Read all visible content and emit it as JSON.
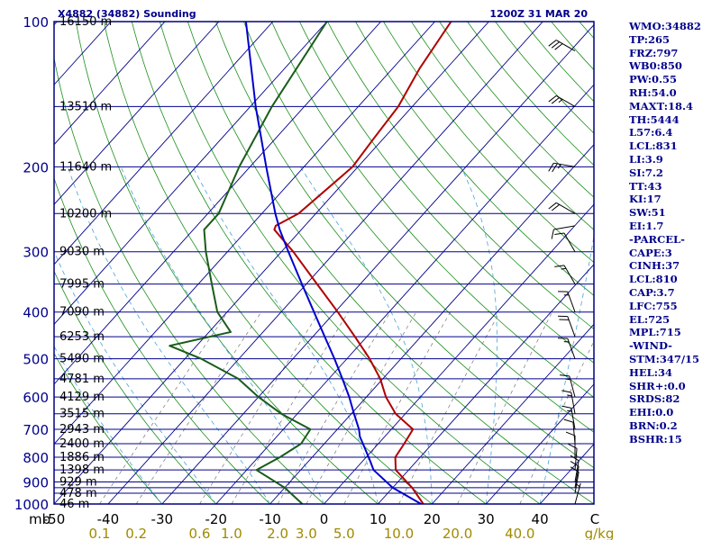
{
  "colors": {
    "background": "#ffffff",
    "frame": "#000080",
    "isobar": "#00008b",
    "isotherm": "#00008b",
    "dry_adiabat": "#1a8f1a",
    "moist_adiabat": "#4aa3d8",
    "mixing_ratio": "#777777",
    "temperature": "#b00000",
    "dewpoint": "#1a5c1a",
    "parcel": "#0000cd",
    "wind_barb": "#000000",
    "label_text": "#00008b",
    "mixing_label": "#a08a00",
    "axis_text": "#000000"
  },
  "header": {
    "station": "X4882 (34882) Sounding",
    "time": "1200Z 31 MAR 20"
  },
  "stats": [
    "WMO:34882",
    "TP:265",
    "FRZ:797",
    "WB0:850",
    "PW:0.55",
    "RH:54.0",
    "MAXT:18.4",
    "TH:5444",
    "L57:6.4",
    "LCL:831",
    "LI:3.9",
    "SI:7.2",
    "TT:43",
    "KI:17",
    "SW:51",
    "EI:1.7",
    "-PARCEL-",
    "CAPE:3",
    "CINH:37",
    "LCL:810",
    "CAP:3.7",
    "LFC:755",
    "EL:725",
    "MPL:715",
    "-WIND-",
    "STM:347/15",
    "HEL:34",
    "SHR+:0.0",
    "SRDS:82",
    "EHI:0.0",
    "BRN:0.2",
    "BSHR:15"
  ],
  "chart_data": {
    "type": "line",
    "title": "X4882 (34882) Sounding",
    "subtitle": "1200Z 31 MAR 20",
    "xlabel": "C",
    "ylabel": "mb",
    "xlim": [
      -50,
      50
    ],
    "ylim": [
      1000,
      100
    ],
    "x_tick_values": [
      -50,
      -40,
      -30,
      -20,
      -10,
      0,
      10,
      20,
      30,
      40
    ],
    "x_tick_labels": [
      "-50",
      "-40",
      "-30",
      "-20",
      "-10",
      "0",
      "10",
      "20",
      "30",
      "40"
    ],
    "x_unit_label": "C",
    "y_corner_label": "mb",
    "pressure_labels": [
      "100",
      "200",
      "300",
      "400",
      "500",
      "600",
      "700",
      "800",
      "900",
      "1000"
    ],
    "pressure_label_values": [
      100,
      200,
      300,
      400,
      500,
      600,
      700,
      800,
      900,
      1000
    ],
    "isobar_levels": [
      100,
      150,
      200,
      250,
      300,
      350,
      400,
      450,
      500,
      550,
      600,
      650,
      700,
      750,
      800,
      850,
      900,
      925,
      950,
      1000
    ],
    "height_labels": [
      {
        "p": 100,
        "label": "16150 m"
      },
      {
        "p": 150,
        "label": "13510 m"
      },
      {
        "p": 200,
        "label": "11640 m"
      },
      {
        "p": 250,
        "label": "10200 m"
      },
      {
        "p": 300,
        "label": "9030 m"
      },
      {
        "p": 350,
        "label": "7995 m"
      },
      {
        "p": 400,
        "label": "7090 m"
      },
      {
        "p": 450,
        "label": "6253 m"
      },
      {
        "p": 500,
        "label": "5490 m"
      },
      {
        "p": 550,
        "label": "4781 m"
      },
      {
        "p": 600,
        "label": "4129 m"
      },
      {
        "p": 650,
        "label": "3515 m"
      },
      {
        "p": 700,
        "label": "2943 m"
      },
      {
        "p": 750,
        "label": "2400 m"
      },
      {
        "p": 800,
        "label": "1886 m"
      },
      {
        "p": 850,
        "label": "1398 m"
      },
      {
        "p": 900,
        "label": "929 m"
      },
      {
        "p": 950,
        "label": "478 m"
      },
      {
        "p": 1000,
        "label": "46 m"
      }
    ],
    "mixing_ratio_values": [
      0.1,
      0.2,
      0.6,
      1.0,
      2.0,
      3.0,
      5.0,
      10.0,
      20.0,
      40.0
    ],
    "mixing_ratio_labels": [
      "0.1",
      "0.2",
      "0.6",
      "1.0",
      "2.0",
      "3.0",
      "5.0",
      "10.0",
      "20.0",
      "40.0"
    ],
    "mixing_ratio_unit": "g/kg",
    "series": [
      {
        "name": "Temperature",
        "points": [
          {
            "p": 1000,
            "t": 18.4
          },
          {
            "p": 925,
            "t": 13.6
          },
          {
            "p": 850,
            "t": 7.6
          },
          {
            "p": 800,
            "t": 5.4
          },
          {
            "p": 750,
            "t": 4.8
          },
          {
            "p": 700,
            "t": 4.0
          },
          {
            "p": 650,
            "t": -1.8
          },
          {
            "p": 600,
            "t": -6.4
          },
          {
            "p": 550,
            "t": -10.5
          },
          {
            "p": 500,
            "t": -15.8
          },
          {
            "p": 450,
            "t": -22.2
          },
          {
            "p": 400,
            "t": -29.5
          },
          {
            "p": 350,
            "t": -38.0
          },
          {
            "p": 300,
            "t": -47.8
          },
          {
            "p": 270,
            "t": -55.0
          },
          {
            "p": 265,
            "t": -55.4
          },
          {
            "p": 250,
            "t": -53.2
          },
          {
            "p": 200,
            "t": -51.0
          },
          {
            "p": 175,
            "t": -51.8
          },
          {
            "p": 150,
            "t": -52.6
          },
          {
            "p": 125,
            "t": -55.0
          },
          {
            "p": 100,
            "t": -57.0
          }
        ]
      },
      {
        "name": "Dewpoint",
        "points": [
          {
            "p": 1000,
            "t": -4.0
          },
          {
            "p": 925,
            "t": -10.0
          },
          {
            "p": 850,
            "t": -18.2
          },
          {
            "p": 800,
            "t": -16.0
          },
          {
            "p": 750,
            "t": -14.3
          },
          {
            "p": 700,
            "t": -15.0
          },
          {
            "p": 650,
            "t": -23.0
          },
          {
            "p": 600,
            "t": -30.0
          },
          {
            "p": 550,
            "t": -36.8
          },
          {
            "p": 500,
            "t": -47.0
          },
          {
            "p": 470,
            "t": -55.0
          },
          {
            "p": 440,
            "t": -46.0
          },
          {
            "p": 400,
            "t": -51.8
          },
          {
            "p": 350,
            "t": -57.5
          },
          {
            "p": 300,
            "t": -64.0
          },
          {
            "p": 270,
            "t": -68.0
          },
          {
            "p": 250,
            "t": -68.0
          },
          {
            "p": 200,
            "t": -72.0
          },
          {
            "p": 150,
            "t": -76.0
          },
          {
            "p": 100,
            "t": -80.0
          }
        ]
      },
      {
        "name": "Parcel",
        "points": [
          {
            "p": 1000,
            "t": 18.0
          },
          {
            "p": 925,
            "t": 10.0
          },
          {
            "p": 850,
            "t": 3.5
          },
          {
            "p": 810,
            "t": 1.1
          },
          {
            "p": 755,
            "t": -2.5
          },
          {
            "p": 725,
            "t": -4.6
          },
          {
            "p": 700,
            "t": -6.0
          },
          {
            "p": 650,
            "t": -9.5
          },
          {
            "p": 600,
            "t": -13.2
          },
          {
            "p": 550,
            "t": -17.5
          },
          {
            "p": 500,
            "t": -22.3
          },
          {
            "p": 450,
            "t": -27.8
          },
          {
            "p": 400,
            "t": -33.9
          },
          {
            "p": 350,
            "t": -40.8
          },
          {
            "p": 300,
            "t": -48.7
          },
          {
            "p": 270,
            "t": -54.0
          },
          {
            "p": 250,
            "t": -57.5
          },
          {
            "p": 200,
            "t": -67.0
          },
          {
            "p": 150,
            "t": -79.0
          },
          {
            "p": 100,
            "t": -95.0
          }
        ]
      }
    ],
    "wind_barbs": [
      {
        "p": 115,
        "dir": 300,
        "kt": 30
      },
      {
        "p": 150,
        "dir": 300,
        "kt": 25
      },
      {
        "p": 200,
        "dir": 280,
        "kt": 25
      },
      {
        "p": 250,
        "dir": 300,
        "kt": 20
      },
      {
        "p": 265,
        "dir": 260,
        "kt": 10
      },
      {
        "p": 300,
        "dir": 330,
        "kt": 10
      },
      {
        "p": 350,
        "dir": 330,
        "kt": 15
      },
      {
        "p": 400,
        "dir": 340,
        "kt": 15
      },
      {
        "p": 450,
        "dir": 340,
        "kt": 20
      },
      {
        "p": 500,
        "dir": 340,
        "kt": 15
      },
      {
        "p": 600,
        "dir": 345,
        "kt": 15
      },
      {
        "p": 650,
        "dir": 350,
        "kt": 15
      },
      {
        "p": 700,
        "dir": 350,
        "kt": 15
      },
      {
        "p": 750,
        "dir": 355,
        "kt": 10
      },
      {
        "p": 800,
        "dir": 0,
        "kt": 10
      },
      {
        "p": 850,
        "dir": 5,
        "kt": 10
      },
      {
        "p": 900,
        "dir": 10,
        "kt": 10
      },
      {
        "p": 925,
        "dir": 10,
        "kt": 10
      },
      {
        "p": 950,
        "dir": 10,
        "kt": 10
      },
      {
        "p": 1000,
        "dir": 15,
        "kt": 5
      }
    ]
  }
}
